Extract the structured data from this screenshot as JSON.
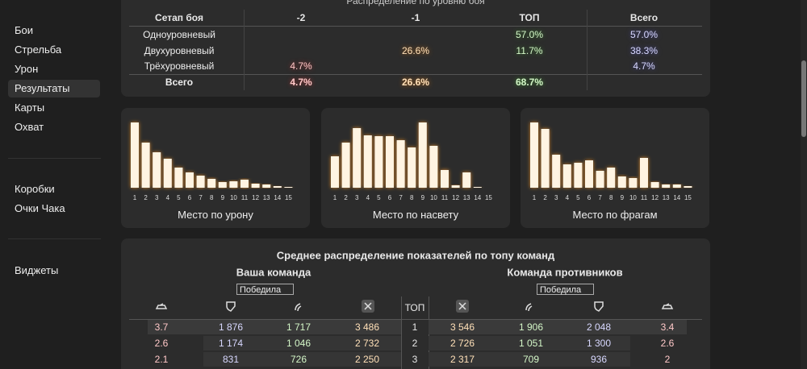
{
  "sidebar": {
    "groups": [
      [
        "Бои",
        "Стрельба",
        "Урон",
        "Результаты",
        "Карты",
        "Охват"
      ],
      [
        "Коробки",
        "Очки Чака"
      ],
      [
        "Виджеты"
      ]
    ]
  },
  "level_table": {
    "title": "Распределение по уровню боя",
    "header": [
      "Сетап боя",
      "-2",
      "-1",
      "ТОП",
      "Всего"
    ],
    "rows": [
      [
        "Одноуровневый",
        null,
        null,
        "57.0%",
        "57.0%"
      ],
      [
        "Двухуровневый",
        null,
        "26.6%",
        "11.7%",
        "38.3%"
      ],
      [
        "Трёхуровневый",
        "4.7%",
        null,
        null,
        "4.7%"
      ]
    ],
    "total": [
      "Всего",
      "4.7%",
      "26.6%",
      "68.7%",
      null
    ]
  },
  "charts": [
    {
      "type": "bar",
      "title": "Место по урону",
      "categories": [
        "1",
        "2",
        "3",
        "4",
        "5",
        "6",
        "7",
        "8",
        "9",
        "10",
        "11",
        "12",
        "13",
        "14",
        "15"
      ],
      "values": [
        81,
        56,
        44,
        36,
        25,
        19,
        15,
        11,
        7,
        8,
        10,
        5,
        4,
        2,
        1
      ]
    },
    {
      "type": "bar",
      "title": "Место по насвету",
      "categories": [
        "1",
        "2",
        "3",
        "4",
        "5",
        "6",
        "7",
        "8",
        "9",
        "10",
        "11",
        "12",
        "13",
        "14",
        "15"
      ],
      "values": [
        39,
        56,
        74,
        65,
        64,
        64,
        59,
        50,
        81,
        52,
        22,
        3,
        19,
        1,
        0
      ]
    },
    {
      "type": "bar",
      "title": "Место по фрагам",
      "categories": [
        "1",
        "2",
        "3",
        "4",
        "5",
        "6",
        "7",
        "8",
        "9",
        "10",
        "11",
        "12",
        "13",
        "14",
        "15"
      ],
      "values": [
        81,
        73,
        41,
        29,
        31,
        34,
        21,
        25,
        14,
        12,
        37,
        7,
        4,
        4,
        2
      ]
    }
  ],
  "team_table": {
    "title": "Среднее распределение показателей по топу команд",
    "left": {
      "title": "Ваша команда",
      "filter": "Победила"
    },
    "right": {
      "title": "Команда противников",
      "filter": "Победила"
    },
    "top_header": "ТОП",
    "rows": [
      {
        "left": [
          "3.7",
          "1 876",
          "1 717",
          "3 486"
        ],
        "top": "1",
        "right": [
          "3 546",
          "1 906",
          "2 048",
          "3.4"
        ]
      },
      {
        "left": [
          "2.6",
          "1 174",
          "1 046",
          "2 732"
        ],
        "top": "2",
        "right": [
          "2 726",
          "1 051",
          "1 300",
          "2.6"
        ]
      },
      {
        "left": [
          "2.1",
          "831",
          "726",
          "2 250"
        ],
        "top": "3",
        "right": [
          "2 317",
          "709",
          "936",
          "2"
        ]
      }
    ]
  }
}
